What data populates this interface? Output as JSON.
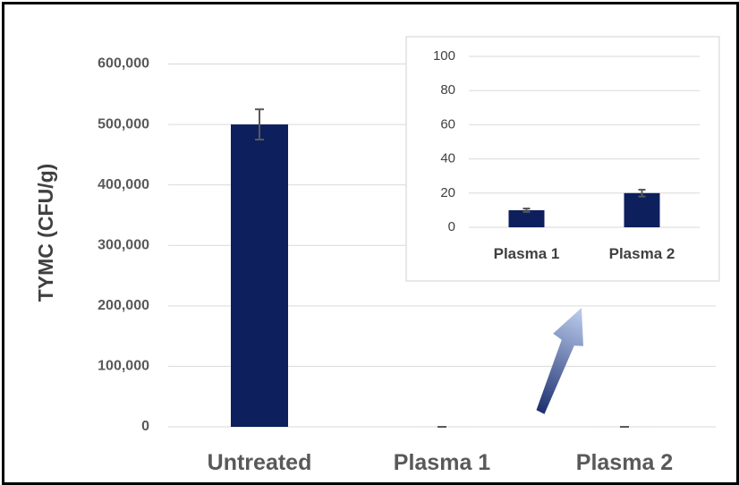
{
  "colors": {
    "bar": "#0d1f5c",
    "grid": "#d9d9d9",
    "error_bar": "#595959",
    "arrow_dark": "#1b2f6e",
    "arrow_light": "#b8c8ea"
  },
  "chart_data": [
    {
      "type": "bar",
      "title": "",
      "xlabel": "",
      "ylabel": "TYMC (CFU/g)",
      "categories": [
        "Untreated",
        "Plasma 1",
        "Plasma 2"
      ],
      "values": [
        500000,
        10,
        20
      ],
      "error": [
        25000,
        1,
        2
      ],
      "ylim": [
        0,
        600000
      ],
      "yticks": [
        0,
        100000,
        200000,
        300000,
        400000,
        500000,
        600000
      ],
      "ytick_labels": [
        "0",
        "100,000",
        "200,000",
        "300,000",
        "400,000",
        "500,000",
        "600,000"
      ],
      "grid": true,
      "legend": "none"
    },
    {
      "type": "bar",
      "title": "",
      "xlabel": "",
      "ylabel": "",
      "categories": [
        "Plasma 1",
        "Plasma 2"
      ],
      "values": [
        10,
        20
      ],
      "error": [
        1,
        2
      ],
      "ylim": [
        0,
        100
      ],
      "yticks": [
        0,
        20,
        40,
        60,
        80,
        100
      ],
      "ytick_labels": [
        "0",
        "20",
        "40",
        "60",
        "80",
        "100"
      ],
      "grid": true,
      "legend": "none"
    }
  ]
}
